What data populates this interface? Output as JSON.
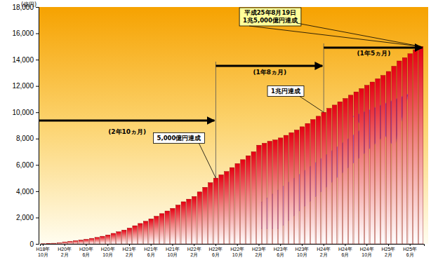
{
  "chart_data": {
    "type": "bar",
    "y_label": "(億円)",
    "color": "#e60012",
    "grid": false,
    "categories": [
      "H18年10月",
      null,
      null,
      null,
      "H20年2月",
      null,
      null,
      null,
      "H20年6月",
      null,
      null,
      null,
      "H20年10月",
      null,
      null,
      null,
      "H21年2月",
      null,
      null,
      null,
      "H21年6月",
      null,
      null,
      null,
      "H21年10月",
      null,
      null,
      null,
      "H22年2月",
      null,
      null,
      null,
      "H22年6月",
      null,
      null,
      null,
      "H22年10月",
      null,
      null,
      null,
      "H23年2月",
      null,
      null,
      null,
      "H23年6月",
      null,
      null,
      null,
      "H23年10月",
      null,
      null,
      null,
      "H24年2月",
      null,
      null,
      null,
      "H24年6月",
      null,
      null,
      null,
      "H24年10月",
      null,
      null,
      null,
      "H25年2月",
      null,
      null,
      null,
      "H25年6月",
      null,
      null
    ],
    "values": [
      10,
      30,
      50,
      80,
      150,
      190,
      240,
      290,
      350,
      420,
      490,
      580,
      680,
      800,
      920,
      1050,
      1200,
      1380,
      1550,
      1720,
      1900,
      2100,
      2300,
      2500,
      2700,
      2950,
      3200,
      3400,
      3600,
      3950,
      4300,
      4650,
      5000,
      5250,
      5500,
      5800,
      6100,
      6400,
      6700,
      7000,
      7500,
      7650,
      7800,
      7900,
      8050,
      8250,
      8450,
      8650,
      8900,
      9150,
      9450,
      9700,
      10000,
      10300,
      10550,
      10800,
      11050,
      11300,
      11550,
      11800,
      12050,
      12300,
      12550,
      12800,
      13100,
      13500,
      13900,
      14150,
      14450,
      14750,
      15000
    ],
    "ylim": [
      0,
      18000
    ],
    "yticks": [
      0,
      {
        "value": 2000,
        "label": "2,000"
      },
      {
        "value": 4000,
        "label": "4,000"
      },
      {
        "value": 6000,
        "label": "6,000"
      },
      {
        "value": 8000,
        "label": "8,000"
      },
      {
        "value": 10000,
        "label": "10,000"
      },
      {
        "value": 12000,
        "label": "12,000"
      },
      {
        "value": 14000,
        "label": "14,000"
      },
      {
        "value": 16000,
        "label": "16,000"
      },
      {
        "value": 18000,
        "label": "18,000"
      }
    ],
    "annotations": [
      "5,000億円達成",
      "1兆円達成",
      "平成25年8月19日",
      "1兆5,000億円達成"
    ],
    "periods": [
      "(2年10ヵ月)",
      "(1年8ヵ月)",
      "(1年5ヵ月)"
    ]
  }
}
